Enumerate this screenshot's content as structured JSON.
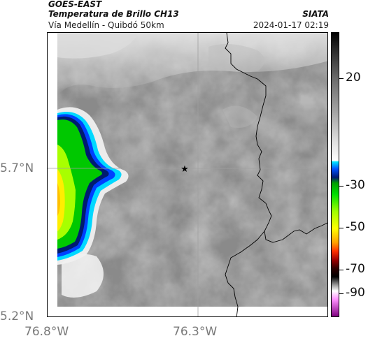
{
  "header": {
    "title": "GOES-EAST",
    "subtitle": "Temperatura de Brillo CH13",
    "source": "SIATA",
    "location": "Vía Medellín - Quibdó 50km",
    "timestamp": "2024-01-17 02:19"
  },
  "axes": {
    "latitude_labels": [
      "5.7°N",
      "5.2°N"
    ],
    "longitude_labels": [
      "76.8°W",
      "76.3°W"
    ]
  },
  "colorbar": {
    "labels": [
      "20",
      "-30",
      "-50",
      "-70",
      "-90"
    ],
    "colors": [
      "#ffffff",
      "#00e5ff",
      "#0050ff",
      "#001a70",
      "#00c000",
      "#7fff00",
      "#ffff00",
      "#ff8000",
      "#c00000",
      "#300000",
      "#000000",
      "#b0b0b0",
      "#d070d0",
      "#800080"
    ]
  },
  "map": {
    "marker": "star-icon",
    "background_colors": {
      "cloud_top": "#8c8c8c",
      "clear_land": "#f2f2f2",
      "border_line": "#000000",
      "grid": "#9a9a9a"
    }
  }
}
